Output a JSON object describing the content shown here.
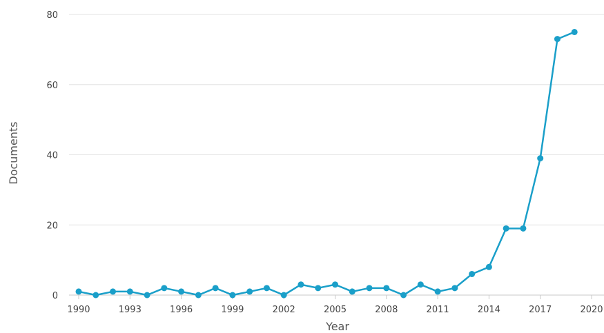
{
  "chart_data": {
    "type": "line",
    "xlabel": "Year",
    "ylabel": "Documents",
    "xlim": [
      1990,
      2020
    ],
    "ylim": [
      0,
      80
    ],
    "x_ticks": [
      1990,
      1993,
      1996,
      1999,
      2002,
      2005,
      2008,
      2011,
      2014,
      2017,
      2020
    ],
    "y_ticks": [
      0,
      20,
      40,
      60,
      80
    ],
    "grid": "horizontal",
    "legend": "none",
    "line_color": "#1a9fc9",
    "series": [
      {
        "x": [
          1990,
          1991,
          1992,
          1993,
          1994,
          1995,
          1996,
          1997,
          1998,
          1999,
          2000,
          2001,
          2002,
          2003,
          2004,
          2005,
          2006,
          2007,
          2008,
          2009,
          2010,
          2011,
          2012,
          2013,
          2014,
          2015,
          2016,
          2017,
          2018,
          2019
        ],
        "values": [
          1,
          0,
          1,
          1,
          0,
          2,
          1,
          0,
          2,
          0,
          1,
          2,
          0,
          3,
          2,
          3,
          1,
          2,
          2,
          0,
          3,
          1,
          2,
          6,
          8,
          19,
          19,
          39,
          73,
          75
        ]
      }
    ]
  }
}
